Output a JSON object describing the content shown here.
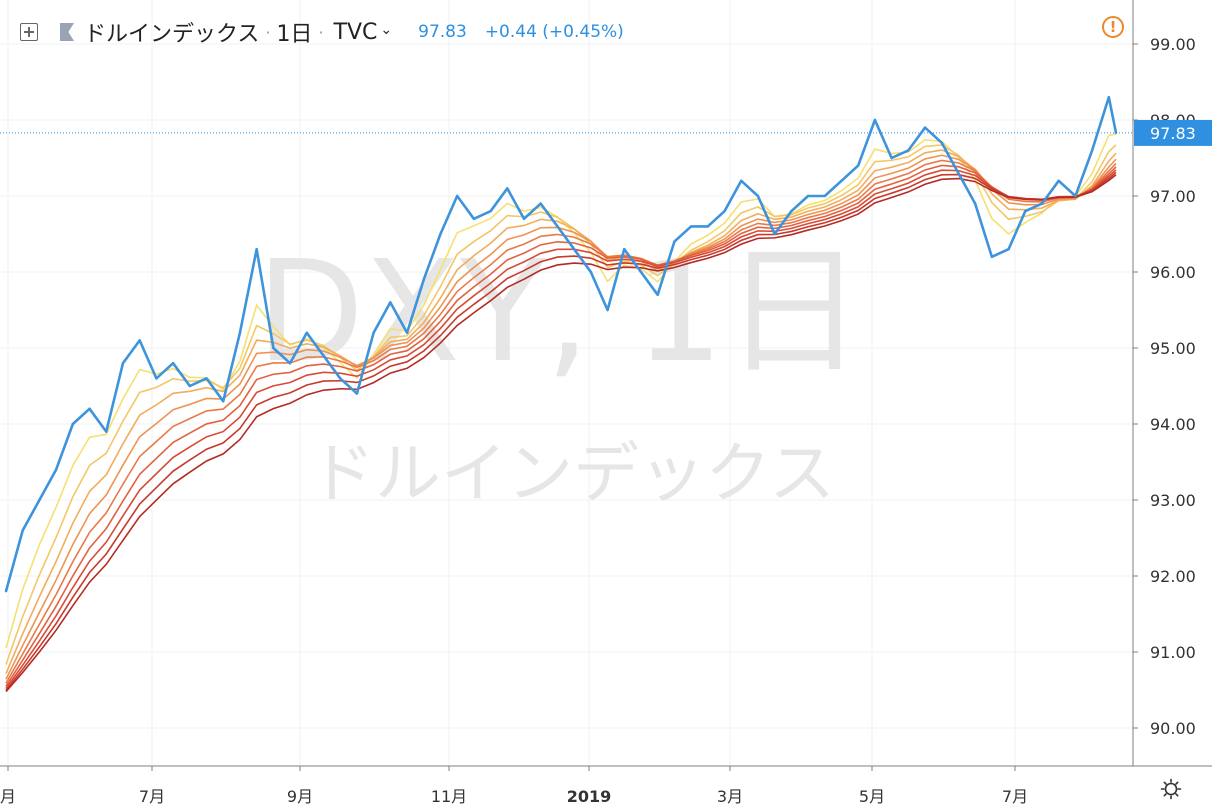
{
  "header": {
    "symbol_name": "ドルインデックス",
    "separator": "·",
    "interval": "1日",
    "source": "TVC",
    "caret": "⌄",
    "last_price": "97.83",
    "change": "+0.44 (+0.45%)",
    "alert_glyph": "!"
  },
  "watermark": {
    "line1": "DXY, 1日",
    "line2": "ドルインデックス"
  },
  "colors": {
    "price_line": "#3d93dc",
    "last_price_label_bg": "#2f8fe0",
    "grid": "#eef0f4",
    "axis_text": "#333333",
    "watermark": "#e6e6e6",
    "ribbon": [
      "#f5e070",
      "#f4c766",
      "#f2ad5c",
      "#ee9352",
      "#e97a48",
      "#e2623f",
      "#d84c36",
      "#c9392d",
      "#b52b24"
    ],
    "alert": "#f0882b"
  },
  "chart_data": {
    "type": "line",
    "symbol": "DXY",
    "series": [
      {
        "name": "DXY",
        "x": [
          "2018-05-01",
          "2018-05-08",
          "2018-05-15",
          "2018-05-22",
          "2018-05-29",
          "2018-06-05",
          "2018-06-12",
          "2018-06-19",
          "2018-06-26",
          "2018-07-03",
          "2018-07-10",
          "2018-07-17",
          "2018-07-24",
          "2018-07-31",
          "2018-08-07",
          "2018-08-14",
          "2018-08-21",
          "2018-08-28",
          "2018-09-04",
          "2018-09-11",
          "2018-09-18",
          "2018-09-25",
          "2018-10-02",
          "2018-10-09",
          "2018-10-16",
          "2018-10-23",
          "2018-10-30",
          "2018-11-06",
          "2018-11-13",
          "2018-11-20",
          "2018-11-27",
          "2018-12-04",
          "2018-12-11",
          "2018-12-18",
          "2018-12-25",
          "2019-01-01",
          "2019-01-08",
          "2019-01-15",
          "2019-01-22",
          "2019-01-29",
          "2019-02-05",
          "2019-02-12",
          "2019-02-19",
          "2019-02-26",
          "2019-03-05",
          "2019-03-12",
          "2019-03-19",
          "2019-03-26",
          "2019-04-02",
          "2019-04-09",
          "2019-04-16",
          "2019-04-23",
          "2019-04-30",
          "2019-05-07",
          "2019-05-14",
          "2019-05-21",
          "2019-05-28",
          "2019-06-04",
          "2019-06-11",
          "2019-06-18",
          "2019-06-25",
          "2019-07-02",
          "2019-07-09",
          "2019-07-16",
          "2019-07-23",
          "2019-07-30",
          "2019-08-06",
          "2019-08-09"
        ],
        "values": [
          91.8,
          92.6,
          93.0,
          93.4,
          94.0,
          94.2,
          93.9,
          94.8,
          95.1,
          94.6,
          94.8,
          94.5,
          94.6,
          94.3,
          95.2,
          96.3,
          95.0,
          94.8,
          95.2,
          94.9,
          94.6,
          94.4,
          95.2,
          95.6,
          95.2,
          95.9,
          96.5,
          97.0,
          96.7,
          96.8,
          97.1,
          96.7,
          96.9,
          96.6,
          96.3,
          96.0,
          95.5,
          96.3,
          96.0,
          95.7,
          96.4,
          96.6,
          96.6,
          96.8,
          97.2,
          97.0,
          96.5,
          96.8,
          97.0,
          97.0,
          97.2,
          97.4,
          98.0,
          97.5,
          97.6,
          97.9,
          97.7,
          97.3,
          96.9,
          96.2,
          96.3,
          96.8,
          96.9,
          97.2,
          97.0,
          97.6,
          98.3,
          97.83
        ]
      }
    ],
    "ribbon_note": "9 moving-average lines (yellow to dark red) smoothing the price",
    "x_ticks": [
      "月",
      "7月",
      "9月",
      "11月",
      "2019",
      "3月",
      "5月",
      "7月"
    ],
    "y_ticks": [
      "90.00",
      "91.00",
      "92.00",
      "93.00",
      "94.00",
      "95.00",
      "96.00",
      "97.00",
      "98.00",
      "99.00"
    ],
    "ylim": [
      89.7,
      99.3
    ],
    "last_value_label": "97.83",
    "grid": true
  }
}
